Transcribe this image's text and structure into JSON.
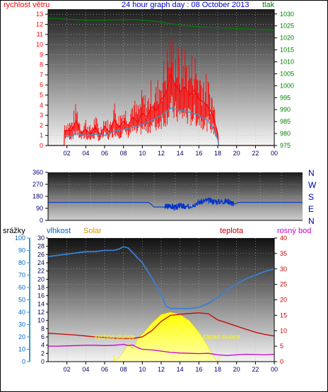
{
  "header": {
    "title": "24 hour graph day : 08 October 2013",
    "left_label": "rychlost větru",
    "right_label": "tlak"
  },
  "colors": {
    "wind": "#ff0000",
    "gust": "#ff0000",
    "wind_avg": "#3399cc",
    "pressure": "#008000",
    "direction": "#0033cc",
    "humidity": "#3a7fd5",
    "solar": "#ffff00",
    "temperature": "#cc0000",
    "dewpoint": "#cc00cc",
    "rain": "#0000cc",
    "title": "#0000cc",
    "solar_label": "#cc9900"
  },
  "chart_data": [
    {
      "type": "line",
      "title": "24 hour graph day : 08 October 2013",
      "x_ticks": [
        "02",
        "04",
        "06",
        "08",
        "10",
        "12",
        "14",
        "16",
        "18",
        "20",
        "22",
        "00"
      ],
      "xlim": [
        0,
        24
      ],
      "left_axis": {
        "label": "rychlost větru",
        "ticks": [
          0,
          1,
          2,
          3,
          4,
          5,
          6,
          7,
          8,
          9,
          10,
          11,
          12,
          13
        ],
        "ylim": [
          0,
          13.5
        ]
      },
      "right_axis": {
        "label": "tlak",
        "ticks": [
          975,
          980,
          985,
          990,
          995,
          1000,
          1005,
          1010,
          1015,
          1020,
          1025,
          1030
        ],
        "ylim": [
          975,
          1032
        ]
      },
      "series": [
        {
          "name": "rychlost větru",
          "axis": "left",
          "x": [
            0,
            1.7,
            1.75,
            2.5,
            3,
            3.5,
            4,
            4.5,
            5,
            5.5,
            6,
            6.5,
            7,
            7.5,
            8,
            8.5,
            9,
            9.5,
            10,
            10.5,
            11,
            11.5,
            12,
            12.5,
            13,
            13.5,
            14,
            14.5,
            15,
            15.5,
            16,
            16.5,
            17,
            17.5,
            18,
            18.1,
            24
          ],
          "y": [
            0,
            0,
            1.5,
            1.5,
            2.5,
            1.2,
            1.6,
            1.1,
            1.8,
            1,
            1.9,
            1.3,
            2.6,
            1.8,
            2.4,
            2,
            2.8,
            2.3,
            3.2,
            2.8,
            3.8,
            3.5,
            4.5,
            5.2,
            7,
            6,
            5.3,
            5.8,
            5,
            5.5,
            4.6,
            4.3,
            3.8,
            3,
            1.2,
            0,
            0
          ]
        },
        {
          "name": "wind_avg",
          "axis": "left",
          "x": [
            1.75,
            2.5,
            3,
            4,
            5,
            6,
            7,
            8,
            9,
            10,
            11,
            12,
            12.5,
            13,
            13.5,
            14,
            15,
            16,
            17,
            17.5,
            18,
            18.1
          ],
          "y": [
            1,
            0.9,
            1.2,
            1,
            1.1,
            1,
            1.4,
            1.6,
            1.8,
            2.1,
            2.5,
            3,
            3.3,
            3.7,
            3.6,
            3.5,
            3.3,
            3,
            2.4,
            1.8,
            0.6,
            0
          ]
        },
        {
          "name": "tlak",
          "axis": "right",
          "x": [
            0,
            1,
            2,
            3,
            4,
            5,
            6,
            7,
            8,
            9,
            10,
            11,
            12,
            13,
            14,
            15,
            16,
            17,
            18,
            19,
            20,
            21,
            22,
            23,
            24
          ],
          "y": [
            1028.2,
            1028.1,
            1027.8,
            1027.6,
            1027.4,
            1027.4,
            1027.4,
            1027.5,
            1027.6,
            1027.6,
            1027.4,
            1027.1,
            1026.6,
            1026,
            1025.4,
            1024.9,
            1024.6,
            1024.4,
            1024.3,
            1024.1,
            1023.9,
            1023.8,
            1023.6,
            1023.4,
            1023.2
          ]
        }
      ]
    },
    {
      "type": "line",
      "xlim": [
        0,
        24
      ],
      "left_axis": {
        "ticks": [
          0,
          90,
          180,
          270,
          360
        ],
        "ylim": [
          0,
          360
        ]
      },
      "right_axis": {
        "tick_labels": [
          "N",
          "W",
          "S",
          "E",
          "N"
        ]
      },
      "series": [
        {
          "name": "direction",
          "x": [
            0,
            9.5,
            10,
            11,
            11.5,
            12,
            12.5,
            13,
            14,
            15,
            16,
            17,
            17.5,
            18,
            24
          ],
          "y": [
            135,
            135,
            100,
            100,
            110,
            95,
            115,
            95,
            130,
            150,
            140,
            145,
            120,
            135,
            135
          ]
        }
      ]
    },
    {
      "type": "line",
      "xlim": [
        0,
        24
      ],
      "axes": {
        "rain": {
          "label": "srážky",
          "ticks": [
            0,
            10,
            20,
            30,
            40,
            50,
            60,
            70,
            80,
            90,
            100
          ],
          "ylim": [
            0,
            100
          ]
        },
        "humidity": {
          "label": "vlhkost",
          "ticks": [
            0,
            2,
            4,
            6,
            8,
            10,
            12,
            14,
            16,
            18,
            20,
            22,
            24,
            26,
            28,
            30
          ],
          "ylim": [
            0,
            30
          ]
        },
        "solar": {
          "label": "Solar"
        },
        "temperature": {
          "label": "teplota",
          "ticks": [
            0,
            5,
            10,
            15,
            20,
            25,
            30,
            35,
            40
          ],
          "ylim": [
            0,
            40
          ]
        },
        "dewpoint": {
          "label": "rosný bod"
        }
      },
      "annotations": [
        {
          "text": "východ slunce",
          "x": 7
        },
        {
          "text": "západ slunce",
          "x": 18.2
        }
      ],
      "series": [
        {
          "name": "vlhkost",
          "axis": "rain",
          "x": [
            0,
            1,
            2,
            3,
            4,
            5,
            6,
            7,
            7.5,
            8,
            8.5,
            9,
            10,
            11,
            12,
            12.5,
            13,
            14,
            15,
            16,
            17,
            18,
            19,
            20,
            21,
            22,
            23,
            24
          ],
          "y": [
            85,
            86,
            87,
            88,
            89,
            89,
            90,
            90,
            91,
            93,
            92,
            88,
            80,
            68,
            55,
            45,
            43,
            43,
            43,
            44,
            47,
            52,
            58,
            63,
            67,
            70,
            73,
            75
          ]
        },
        {
          "name": "Solar",
          "axis": "rain",
          "x": [
            6.8,
            7,
            7.5,
            8,
            8.5,
            9,
            9.5,
            10,
            11,
            12,
            13,
            14,
            15,
            16,
            17,
            17.5,
            18
          ],
          "y": [
            0,
            1,
            3,
            8,
            14,
            10,
            18,
            22,
            31,
            38,
            40,
            38,
            33,
            24,
            12,
            5,
            0
          ]
        },
        {
          "name": "teplota",
          "axis": "temperature",
          "x": [
            0,
            1,
            2,
            3,
            4,
            5,
            6,
            7,
            8,
            9,
            10,
            11,
            12,
            13,
            14,
            15,
            16,
            17,
            18,
            19,
            20,
            21,
            22,
            23,
            24
          ],
          "y": [
            9.2,
            9,
            8.8,
            8.6,
            8.3,
            8,
            7.8,
            7.6,
            7.5,
            7.5,
            8,
            10,
            13,
            15,
            15.3,
            15.6,
            15.8,
            15.5,
            13.5,
            12.5,
            11.5,
            10.5,
            9.5,
            8.8,
            8.3
          ]
        },
        {
          "name": "rosný bod",
          "axis": "temperature",
          "x": [
            0,
            1,
            2,
            3,
            4,
            5,
            6,
            7,
            8,
            8.5,
            9,
            9.5,
            10,
            11,
            12,
            13,
            14,
            15,
            16,
            17,
            18,
            19,
            20,
            21,
            22,
            23,
            24
          ],
          "y": [
            5,
            5,
            5.1,
            5.2,
            5.3,
            5.3,
            5.2,
            5.3,
            5.6,
            5.2,
            5.4,
            4.5,
            4,
            3.8,
            3.4,
            3,
            2.8,
            2.7,
            2.6,
            2.7,
            2.2,
            2,
            2.2,
            2.4,
            2.3,
            2.2,
            2.4
          ]
        },
        {
          "name": "srážky",
          "axis": "rain",
          "x": [
            0,
            24
          ],
          "y": [
            0,
            0
          ]
        }
      ]
    }
  ]
}
